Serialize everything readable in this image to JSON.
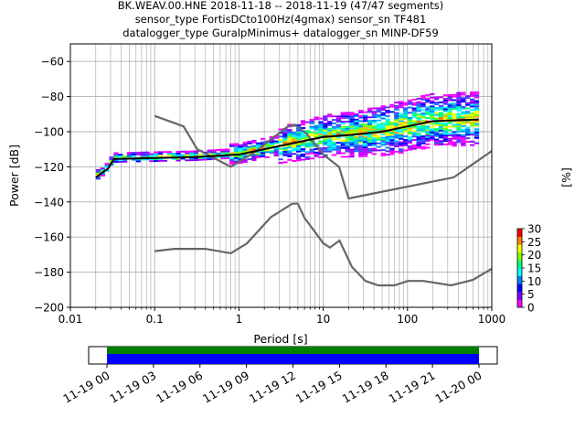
{
  "chart_data": {
    "type": "heatmap",
    "title_lines": [
      "BK.WEAV.00.HNE   2018-11-18 -- 2018-11-19  (47/47 segments)",
      "sensor_type FortisDCto100Hz(4gmax) sensor_sn TF481",
      "datalogger_type GuralpMinimus+ datalogger_sn MINP-DF59"
    ],
    "xlabel": "Period [s]",
    "ylabel": "Power [dB]",
    "x_scale": "log",
    "xlim": [
      0.01,
      1000
    ],
    "ylim": [
      -200,
      -50
    ],
    "grid": true,
    "x_ticks": [
      0.01,
      0.1,
      1,
      10,
      100,
      1000
    ],
    "x_tick_labels": [
      "0.01",
      "0.1",
      "1",
      "10",
      "100",
      "1000"
    ],
    "y_ticks": [
      -200,
      -180,
      -160,
      -140,
      -120,
      -100,
      -80,
      -60
    ],
    "y_tick_labels": [
      "−200",
      "−180",
      "−160",
      "−140",
      "−120",
      "−100",
      "−80",
      "−60"
    ],
    "noise_models": [
      {
        "points": [
          [
            0.1,
            -91
          ],
          [
            0.22,
            -97
          ],
          [
            0.32,
            -110
          ],
          [
            0.8,
            -120
          ],
          [
            1.5,
            -112
          ],
          [
            3.8,
            -97
          ],
          [
            4.6,
            -96
          ],
          [
            6.3,
            -101
          ],
          [
            10,
            -113
          ],
          [
            15.4,
            -120
          ],
          [
            20,
            -138
          ],
          [
            354,
            -126
          ],
          [
            1000,
            -111
          ]
        ]
      },
      {
        "points": [
          [
            0.1,
            -168
          ],
          [
            0.17,
            -166.7
          ],
          [
            0.4,
            -166.7
          ],
          [
            0.8,
            -169.2
          ],
          [
            1.24,
            -163.7
          ],
          [
            2.4,
            -148.6
          ],
          [
            4.3,
            -141
          ],
          [
            5,
            -141
          ],
          [
            6,
            -149
          ],
          [
            10,
            -163.5
          ],
          [
            12,
            -166
          ],
          [
            15.6,
            -162
          ],
          [
            21.9,
            -177
          ],
          [
            31.6,
            -185
          ],
          [
            45,
            -187.5
          ],
          [
            70,
            -187.5
          ],
          [
            101,
            -185
          ],
          [
            154,
            -185
          ],
          [
            328,
            -187.5
          ],
          [
            600,
            -184.4
          ],
          [
            1000,
            -178
          ]
        ]
      }
    ],
    "median_curve": [
      [
        0.02,
        -126
      ],
      [
        0.028,
        -121
      ],
      [
        0.033,
        -115.5
      ],
      [
        0.1,
        -115
      ],
      [
        0.3,
        -114.5
      ],
      [
        1,
        -113
      ],
      [
        2,
        -110
      ],
      [
        5,
        -106
      ],
      [
        10,
        -103
      ],
      [
        20,
        -102
      ],
      [
        50,
        -100
      ],
      [
        100,
        -97
      ],
      [
        200,
        -94
      ],
      [
        700,
        -93
      ]
    ],
    "colorbar": {
      "label": "[%]",
      "ticks": [
        0,
        5,
        10,
        15,
        20,
        25,
        30
      ],
      "range": [
        0,
        30
      ]
    },
    "time_axis": {
      "tick_labels": [
        "11-19 00",
        "11-19 03",
        "11-19 06",
        "11-19 09",
        "11-19 12",
        "11-19 15",
        "11-19 18",
        "11-19 21",
        "11-20 00"
      ],
      "coverage_fraction": 1.0,
      "colors": {
        "coverage": "#008000",
        "data": "#0000ff"
      }
    }
  }
}
